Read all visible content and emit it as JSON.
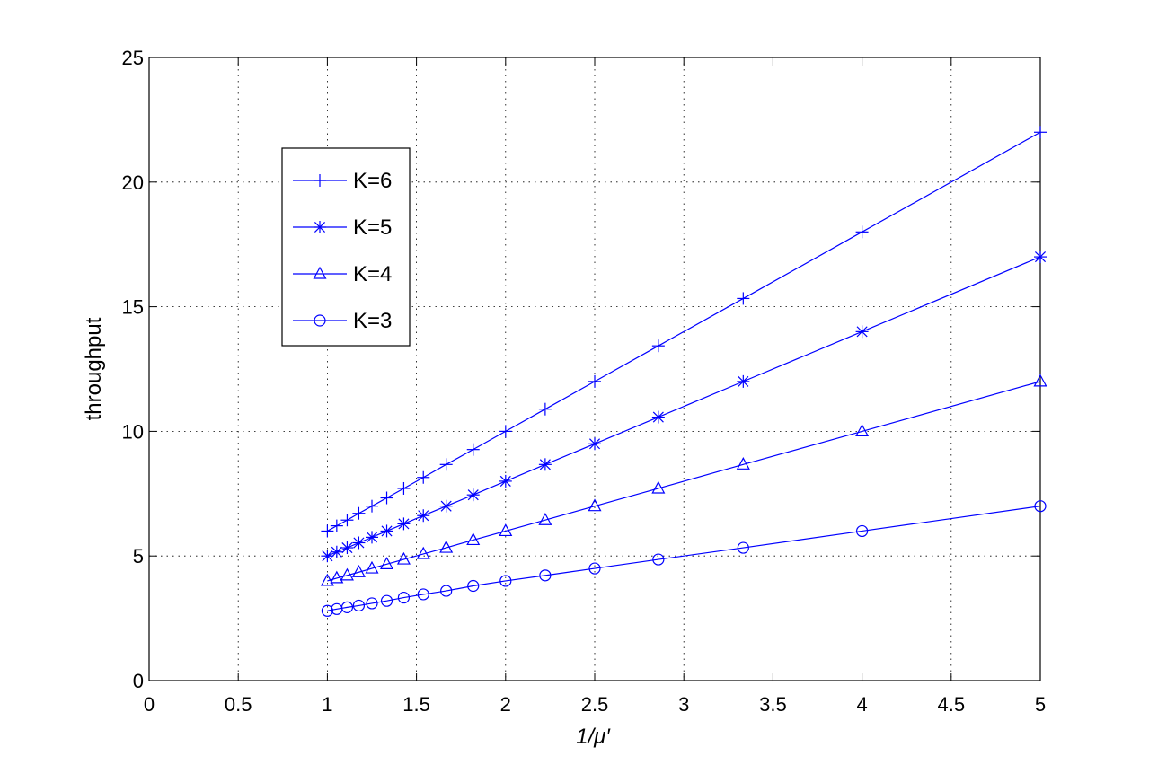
{
  "chart_data": {
    "type": "line",
    "xlabel": "1/μ′",
    "ylabel": "throughput",
    "xlim": [
      0,
      5
    ],
    "ylim": [
      0,
      25
    ],
    "xticks": [
      "0",
      "0.5",
      "1",
      "1.5",
      "2",
      "2.5",
      "3",
      "3.5",
      "4",
      "4.5",
      "5"
    ],
    "yticks": [
      "0",
      "5",
      "10",
      "15",
      "20",
      "25"
    ],
    "grid": true,
    "grid_style": "dotted",
    "legend_position": "upper-left",
    "line_color": "#0000ff",
    "x": [
      1.0,
      1.0526,
      1.1111,
      1.1765,
      1.25,
      1.3333,
      1.4286,
      1.5385,
      1.6667,
      1.8182,
      2.0,
      2.2222,
      2.5,
      2.8571,
      3.3333,
      4.0,
      5.0
    ],
    "series": [
      {
        "name": "K=6",
        "marker": "plus",
        "values": [
          6.0,
          6.21,
          6.44,
          6.71,
          7.0,
          7.33,
          7.71,
          8.15,
          8.67,
          9.27,
          10.0,
          10.89,
          12.0,
          13.43,
          15.33,
          18.0,
          22.0
        ]
      },
      {
        "name": "K=5",
        "marker": "asterisk",
        "values": [
          5.0,
          5.16,
          5.33,
          5.53,
          5.75,
          6.0,
          6.29,
          6.62,
          7.0,
          7.45,
          8.0,
          8.67,
          9.5,
          10.57,
          12.0,
          14.0,
          17.0
        ]
      },
      {
        "name": "K=4",
        "marker": "triangle",
        "values": [
          4.0,
          4.11,
          4.22,
          4.35,
          4.5,
          4.67,
          4.86,
          5.08,
          5.33,
          5.64,
          6.0,
          6.44,
          7.0,
          7.71,
          8.67,
          10.0,
          12.0
        ]
      },
      {
        "name": "K=3",
        "marker": "circle",
        "values": [
          2.8,
          2.87,
          2.94,
          3.01,
          3.1,
          3.2,
          3.33,
          3.46,
          3.6,
          3.8,
          4.0,
          4.22,
          4.5,
          4.86,
          5.33,
          6.0,
          7.0
        ]
      }
    ]
  }
}
